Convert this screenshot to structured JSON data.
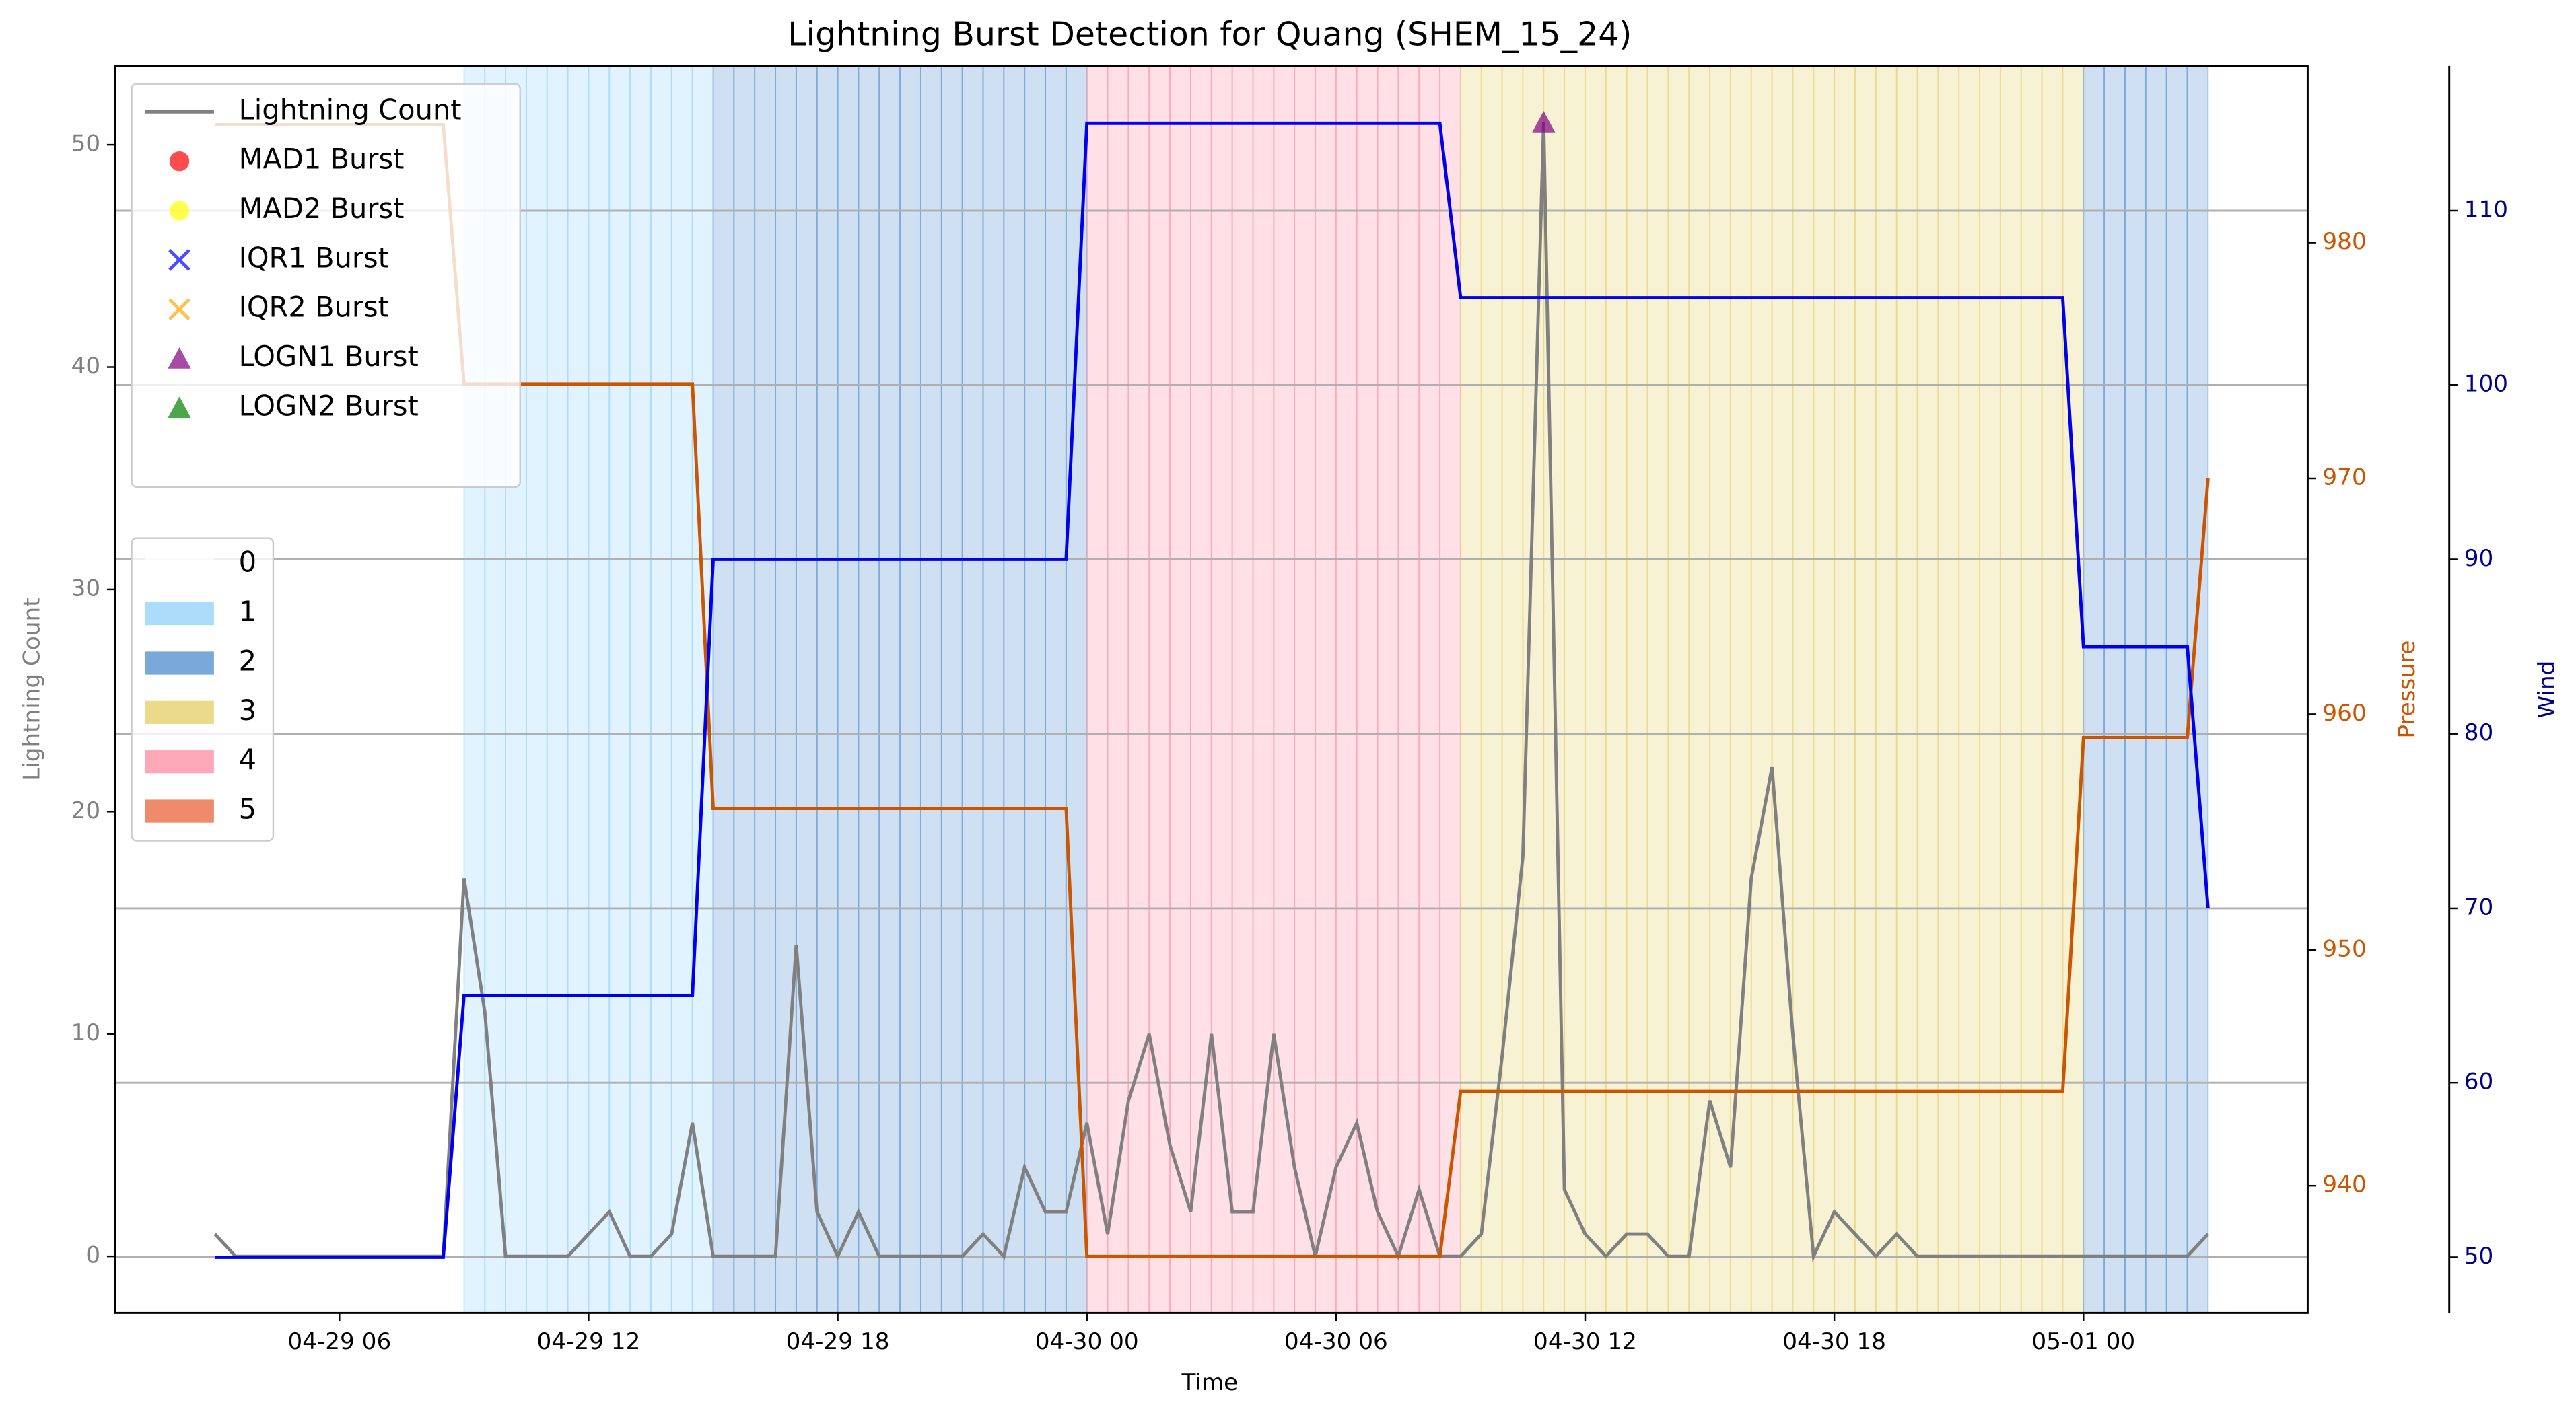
{
  "chart_data": {
    "type": "line",
    "title": "Lightning Burst Detection for Quang (SHEM_15_24)",
    "xlabel": "Time",
    "ylabel": "Lightning Count",
    "y2label": "Pressure",
    "y3label": "Wind",
    "x": [
      "04-29 03:00",
      "04-29 03:30",
      "04-29 04:00",
      "04-29 04:30",
      "04-29 05:00",
      "04-29 05:30",
      "04-29 06:00",
      "04-29 06:30",
      "04-29 07:00",
      "04-29 07:30",
      "04-29 08:00",
      "04-29 08:30",
      "04-29 09:00",
      "04-29 09:30",
      "04-29 10:00",
      "04-29 10:30",
      "04-29 11:00",
      "04-29 11:30",
      "04-29 12:00",
      "04-29 12:30",
      "04-29 13:00",
      "04-29 13:30",
      "04-29 14:00",
      "04-29 14:30",
      "04-29 15:00",
      "04-29 15:30",
      "04-29 16:00",
      "04-29 16:30",
      "04-29 17:00",
      "04-29 17:30",
      "04-29 18:00",
      "04-29 18:30",
      "04-29 19:00",
      "04-29 19:30",
      "04-29 20:00",
      "04-29 20:30",
      "04-29 21:00",
      "04-29 21:30",
      "04-29 22:00",
      "04-29 22:30",
      "04-29 23:00",
      "04-29 23:30",
      "04-30 00:00",
      "04-30 00:30",
      "04-30 01:00",
      "04-30 01:30",
      "04-30 02:00",
      "04-30 02:30",
      "04-30 03:00",
      "04-30 03:30",
      "04-30 04:00",
      "04-30 04:30",
      "04-30 05:00",
      "04-30 05:30",
      "04-30 06:00",
      "04-30 06:30",
      "04-30 07:00",
      "04-30 07:30",
      "04-30 08:00",
      "04-30 08:30",
      "04-30 09:00",
      "04-30 09:30",
      "04-30 10:00",
      "04-30 10:30",
      "04-30 11:00",
      "04-30 11:30",
      "04-30 12:00",
      "04-30 12:30",
      "04-30 13:00",
      "04-30 13:30",
      "04-30 14:00",
      "04-30 14:30",
      "04-30 15:00",
      "04-30 15:30",
      "04-30 16:00",
      "04-30 16:30",
      "04-30 17:00",
      "04-30 17:30",
      "04-30 18:00",
      "04-30 18:30",
      "04-30 19:00",
      "04-30 19:30",
      "04-30 20:00",
      "04-30 20:30",
      "04-30 21:00",
      "04-30 21:30",
      "04-30 22:00",
      "04-30 22:30",
      "04-30 23:00",
      "04-30 23:30",
      "05-01 00:00",
      "05-01 00:30",
      "05-01 01:00",
      "05-01 01:30",
      "05-01 02:00",
      "05-01 02:30",
      "05-01 03:00"
    ],
    "xlim": [
      "04-29 00:36",
      "05-01 05:24"
    ],
    "xticks": [
      {
        "value": "04-29 06:00",
        "label": "04-29 06"
      },
      {
        "value": "04-29 12:00",
        "label": "04-29 12"
      },
      {
        "value": "04-29 18:00",
        "label": "04-29 18"
      },
      {
        "value": "04-30 00:00",
        "label": "04-30 00"
      },
      {
        "value": "04-30 06:00",
        "label": "04-30 06"
      },
      {
        "value": "04-30 12:00",
        "label": "04-30 12"
      },
      {
        "value": "04-30 18:00",
        "label": "04-30 18"
      },
      {
        "value": "05-01 00:00",
        "label": "05-01 00"
      }
    ],
    "ylim": [
      -2.55,
      53.55
    ],
    "yticks": [
      0,
      10,
      20,
      30,
      40,
      50
    ],
    "y2lim": [
      934.6,
      987.5
    ],
    "y2ticks": [
      940,
      950,
      960,
      970,
      980
    ],
    "y3lim": [
      46.8,
      118.3
    ],
    "y3ticks": [
      50,
      60,
      70,
      80,
      90,
      100,
      110
    ],
    "grid": "y3",
    "series": [
      {
        "name": "Lightning Count",
        "color": "#808080",
        "axis": "y",
        "values": [
          1,
          0,
          0,
          0,
          0,
          0,
          0,
          0,
          0,
          0,
          0,
          0,
          17,
          11,
          0,
          0,
          0,
          0,
          1,
          2,
          0,
          0,
          1,
          6,
          0,
          0,
          0,
          0,
          14,
          2,
          0,
          2,
          0,
          0,
          0,
          0,
          0,
          1,
          0,
          4,
          2,
          2,
          6,
          1,
          7,
          10,
          5,
          2,
          10,
          2,
          2,
          10,
          4,
          0,
          4,
          6,
          2,
          0,
          3,
          0,
          0,
          1,
          9,
          18,
          51,
          3,
          1,
          0,
          1,
          1,
          0,
          0,
          7,
          4,
          17,
          22,
          10,
          0,
          2,
          1,
          0,
          1,
          0,
          0,
          0,
          0,
          0,
          0,
          0,
          0,
          0,
          0,
          0,
          0,
          0,
          0,
          1
        ]
      },
      {
        "color": "#cc5500",
        "axis": "y2",
        "values": [
          985,
          985,
          985,
          985,
          985,
          985,
          985,
          985,
          985,
          985,
          985,
          985,
          974,
          974,
          974,
          974,
          974,
          974,
          974,
          974,
          974,
          974,
          974,
          974,
          956,
          956,
          956,
          956,
          956,
          956,
          956,
          956,
          956,
          956,
          956,
          956,
          956,
          956,
          956,
          956,
          956,
          956,
          937,
          937,
          937,
          937,
          937,
          937,
          937,
          937,
          937,
          937,
          937,
          937,
          937,
          937,
          937,
          937,
          937,
          937,
          944,
          944,
          944,
          944,
          944,
          944,
          944,
          944,
          944,
          944,
          944,
          944,
          944,
          944,
          944,
          944,
          944,
          944,
          944,
          944,
          944,
          944,
          944,
          944,
          944,
          944,
          944,
          944,
          944,
          944,
          959,
          959,
          959,
          959,
          959,
          959,
          970
        ]
      },
      {
        "color": "#0000ee",
        "axis": "y3",
        "values": [
          50,
          50,
          50,
          50,
          50,
          50,
          50,
          50,
          50,
          50,
          50,
          50,
          65,
          65,
          65,
          65,
          65,
          65,
          65,
          65,
          65,
          65,
          65,
          65,
          90,
          90,
          90,
          90,
          90,
          90,
          90,
          90,
          90,
          90,
          90,
          90,
          90,
          90,
          90,
          90,
          90,
          90,
          115,
          115,
          115,
          115,
          115,
          115,
          115,
          115,
          115,
          115,
          115,
          115,
          115,
          115,
          115,
          115,
          115,
          115,
          105,
          105,
          105,
          105,
          105,
          105,
          105,
          105,
          105,
          105,
          105,
          105,
          105,
          105,
          105,
          105,
          105,
          105,
          105,
          105,
          105,
          105,
          105,
          105,
          105,
          105,
          105,
          105,
          105,
          105,
          85,
          85,
          85,
          85,
          85,
          85,
          70
        ]
      }
    ],
    "bursts": [
      {
        "name": "MAD1 Burst",
        "color": "#ff0000",
        "marker": "o",
        "x": [],
        "values": []
      },
      {
        "name": "MAD2 Burst",
        "color": "#ffff00",
        "marker": "o",
        "x": [],
        "values": []
      },
      {
        "name": "IQR1 Burst",
        "color": "#0000ff",
        "marker": "x",
        "x": [],
        "values": []
      },
      {
        "name": "IQR2 Burst",
        "color": "#ffa500",
        "marker": "x",
        "x": [],
        "values": []
      },
      {
        "name": "LOGN1 Burst",
        "color": "#800080",
        "marker": "^",
        "x": [
          "04-30 11:00"
        ],
        "values": [
          51
        ]
      },
      {
        "name": "LOGN2 Burst",
        "color": "#008000",
        "marker": "^",
        "x": [],
        "values": []
      }
    ],
    "intensity": {
      "categories": [
        "0",
        "1",
        "2",
        "3",
        "4",
        "5"
      ],
      "colors": [
        "#ffffff",
        "#87cefa",
        "#3e84ca",
        "#e2cb58",
        "#fc839a",
        "#e8582c"
      ],
      "values": [
        0,
        0,
        0,
        0,
        0,
        0,
        0,
        0,
        0,
        0,
        0,
        0,
        1,
        1,
        1,
        1,
        1,
        1,
        1,
        1,
        1,
        1,
        1,
        1,
        2,
        2,
        2,
        2,
        2,
        2,
        2,
        2,
        2,
        2,
        2,
        2,
        2,
        2,
        2,
        2,
        2,
        2,
        4,
        4,
        4,
        4,
        4,
        4,
        4,
        4,
        4,
        4,
        4,
        4,
        4,
        4,
        4,
        4,
        4,
        4,
        3,
        3,
        3,
        3,
        3,
        3,
        3,
        3,
        3,
        3,
        3,
        3,
        3,
        3,
        3,
        3,
        3,
        3,
        3,
        3,
        3,
        3,
        3,
        3,
        3,
        3,
        3,
        3,
        3,
        3,
        2,
        2,
        2,
        2,
        2,
        2,
        null
      ]
    }
  }
}
